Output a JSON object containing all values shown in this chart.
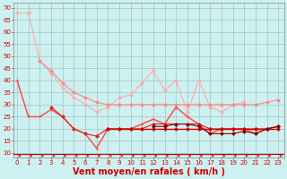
{
  "background_color": "#cdf0f0",
  "grid_color": "#aacccc",
  "xlabel": "Vent moyen/en rafales ( km/h )",
  "xlabel_color": "#cc0000",
  "xlabel_fontsize": 7,
  "ylabel_ticks": [
    10,
    15,
    20,
    25,
    30,
    35,
    40,
    45,
    50,
    55,
    60,
    65,
    70
  ],
  "xticks": [
    0,
    1,
    2,
    3,
    4,
    5,
    6,
    7,
    8,
    9,
    10,
    11,
    12,
    13,
    14,
    15,
    16,
    17,
    18,
    19,
    20,
    21,
    22,
    23
  ],
  "ylim": [
    8,
    72
  ],
  "xlim": [
    -0.3,
    23.5
  ],
  "series": [
    {
      "color": "#ffaaaa",
      "marker": "D",
      "lw": 0.8,
      "ms": 2.0,
      "y": [
        68,
        68,
        null,
        null,
        null,
        null,
        null,
        null,
        null,
        null,
        null,
        null,
        null,
        null,
        null,
        null,
        null,
        null,
        null,
        null,
        null,
        null,
        null,
        null
      ]
    },
    {
      "color": "#ffaaaa",
      "marker": "D",
      "lw": 0.8,
      "ms": 2.0,
      "y": [
        null,
        68,
        48,
        43,
        37,
        33,
        30,
        27,
        29,
        33,
        34,
        39,
        44,
        36,
        40,
        27,
        40,
        29,
        27,
        30,
        31,
        null,
        null,
        null
      ]
    },
    {
      "color": "#ff8888",
      "marker": "D",
      "lw": 0.8,
      "ms": 2.0,
      "y": [
        null,
        null,
        48,
        44,
        39,
        35,
        33,
        31,
        30,
        30,
        30,
        30,
        30,
        30,
        30,
        30,
        30,
        30,
        30,
        30,
        30,
        30,
        31,
        32
      ]
    },
    {
      "color": "#ff4444",
      "marker": "+",
      "lw": 1.0,
      "ms": 3.0,
      "y": [
        40,
        25,
        25,
        28,
        25,
        20,
        18,
        12,
        20,
        20,
        20,
        22,
        24,
        22,
        29,
        25,
        22,
        18,
        20,
        20,
        20,
        18,
        20,
        21
      ]
    },
    {
      "color": "#dd2222",
      "marker": "D",
      "lw": 0.8,
      "ms": 2.0,
      "y": [
        null,
        null,
        null,
        29,
        25,
        20,
        18,
        17,
        20,
        20,
        20,
        20,
        22,
        22,
        22,
        22,
        22,
        20,
        20,
        20,
        20,
        20,
        20,
        21
      ]
    },
    {
      "color": "#cc0000",
      "marker": "D",
      "lw": 1.0,
      "ms": 2.0,
      "y": [
        null,
        null,
        null,
        null,
        null,
        null,
        null,
        null,
        20,
        20,
        20,
        20,
        20,
        20,
        20,
        20,
        20,
        20,
        20,
        20,
        20,
        20,
        20,
        20
      ]
    },
    {
      "color": "#880000",
      "marker": "D",
      "lw": 0.8,
      "ms": 2.0,
      "y": [
        null,
        null,
        null,
        null,
        null,
        null,
        null,
        null,
        null,
        null,
        null,
        null,
        21,
        21,
        22,
        22,
        21,
        18,
        18,
        18,
        19,
        18,
        20,
        21
      ]
    }
  ],
  "arrow_color": "#cc0000",
  "tick_color": "#cc0000",
  "tick_fontsize": 5,
  "ytick_fontsize": 5,
  "ytick_color": "#cc0000",
  "hline_y": 9.5,
  "hline_color": "#cc0000"
}
